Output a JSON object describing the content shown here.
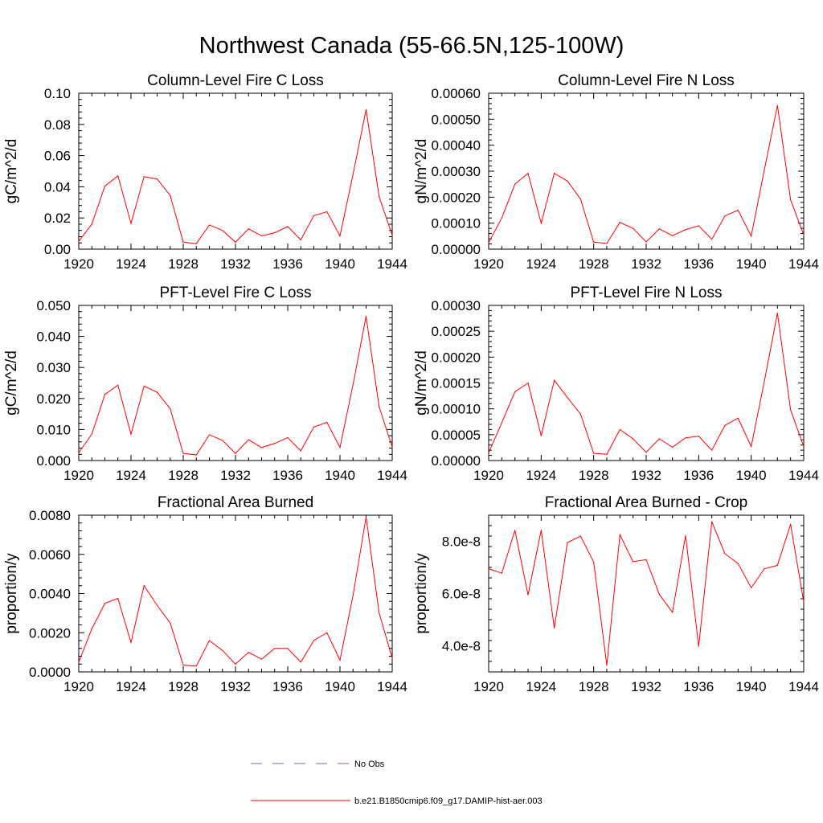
{
  "figure": {
    "title": "Northwest Canada (55-66.5N,125-100W)"
  },
  "legend": [
    {
      "label": "No Obs",
      "color": "#6a6ac9",
      "style": "dashed"
    },
    {
      "label": "b.e21.B1850cmip6.f09_g17.DAMIP-hist-aer.003",
      "color": "#ff0000",
      "style": "solid"
    }
  ],
  "chart_data": [
    {
      "type": "line",
      "title": "Column-Level Fire C Loss",
      "ylabel": "gC/m^2/d",
      "xlabel": "",
      "xlim": [
        1920,
        1944
      ],
      "ylim": [
        0,
        0.1
      ],
      "xticks": [
        "1920",
        "1924",
        "1928",
        "1932",
        "1936",
        "1940",
        "1944"
      ],
      "yticks": [
        "0.00",
        "0.02",
        "0.04",
        "0.06",
        "0.08",
        "0.10"
      ],
      "x": [
        1920,
        1921,
        1922,
        1923,
        1924,
        1925,
        1926,
        1927,
        1928,
        1929,
        1930,
        1931,
        1932,
        1933,
        1934,
        1935,
        1936,
        1937,
        1938,
        1939,
        1940,
        1941,
        1942,
        1943,
        1944
      ],
      "series": [
        {
          "name": "b.e21.B1850cmip6.f09_g17.DAMIP-hist-aer.003",
          "color": "#ff0000",
          "values": [
            0.005,
            0.016,
            0.0405,
            0.047,
            0.0165,
            0.0465,
            0.045,
            0.0345,
            0.0045,
            0.0035,
            0.0155,
            0.012,
            0.0045,
            0.013,
            0.0085,
            0.0105,
            0.0145,
            0.006,
            0.0215,
            0.024,
            0.0085,
            0.048,
            0.0895,
            0.0335,
            0.009
          ]
        }
      ]
    },
    {
      "type": "line",
      "title": "Column-Level Fire N Loss",
      "ylabel": "gN/m^2/d",
      "xlabel": "",
      "xlim": [
        1920,
        1944
      ],
      "ylim": [
        0,
        0.0006
      ],
      "xticks": [
        "1920",
        "1924",
        "1928",
        "1932",
        "1936",
        "1940",
        "1944"
      ],
      "yticks": [
        "0.00000",
        "0.00010",
        "0.00020",
        "0.00030",
        "0.00040",
        "0.00050",
        "0.00060"
      ],
      "x": [
        1920,
        1921,
        1922,
        1923,
        1924,
        1925,
        1926,
        1927,
        1928,
        1929,
        1930,
        1931,
        1932,
        1933,
        1934,
        1935,
        1936,
        1937,
        1938,
        1939,
        1940,
        1941,
        1942,
        1943,
        1944
      ],
      "series": [
        {
          "name": "b.e21.B1850cmip6.f09_g17.DAMIP-hist-aer.003",
          "color": "#ff0000",
          "values": [
            2.5e-05,
            0.00012,
            0.00025,
            0.000292,
            0.0001,
            0.000292,
            0.000262,
            0.000193,
            2.7e-05,
            2.2e-05,
            0.000103,
            8e-05,
            2.8e-05,
            7.8e-05,
            5.2e-05,
            7.5e-05,
            9e-05,
            3.8e-05,
            0.000128,
            0.00015,
            5e-05,
            0.000305,
            0.000553,
            0.00019,
            5.5e-05
          ]
        }
      ]
    },
    {
      "type": "line",
      "title": "PFT-Level Fire C Loss",
      "ylabel": "gC/m^2/d",
      "xlabel": "",
      "xlim": [
        1920,
        1944
      ],
      "ylim": [
        0,
        0.05
      ],
      "xticks": [
        "1920",
        "1924",
        "1928",
        "1932",
        "1936",
        "1940",
        "1944"
      ],
      "yticks": [
        "0.000",
        "0.010",
        "0.020",
        "0.030",
        "0.040",
        "0.050"
      ],
      "x": [
        1920,
        1921,
        1922,
        1923,
        1924,
        1925,
        1926,
        1927,
        1928,
        1929,
        1930,
        1931,
        1932,
        1933,
        1934,
        1935,
        1936,
        1937,
        1938,
        1939,
        1940,
        1941,
        1942,
        1943,
        1944
      ],
      "series": [
        {
          "name": "b.e21.B1850cmip6.f09_g17.DAMIP-hist-aer.003",
          "color": "#ff0000",
          "values": [
            0.0025,
            0.0085,
            0.0213,
            0.0243,
            0.0085,
            0.024,
            0.022,
            0.0167,
            0.0023,
            0.0018,
            0.0083,
            0.0065,
            0.0023,
            0.0067,
            0.0042,
            0.0055,
            0.0074,
            0.0031,
            0.0108,
            0.0123,
            0.0042,
            0.0245,
            0.0465,
            0.0173,
            0.0043
          ]
        }
      ]
    },
    {
      "type": "line",
      "title": "PFT-Level Fire N Loss",
      "ylabel": "gN/m^2/d",
      "xlabel": "",
      "xlim": [
        1920,
        1944
      ],
      "ylim": [
        0,
        0.0003
      ],
      "xticks": [
        "1920",
        "1924",
        "1928",
        "1932",
        "1936",
        "1940",
        "1944"
      ],
      "yticks": [
        "0.00000",
        "0.00005",
        "0.00010",
        "0.00015",
        "0.00020",
        "0.00025",
        "0.00030"
      ],
      "x": [
        1920,
        1921,
        1922,
        1923,
        1924,
        1925,
        1926,
        1927,
        1928,
        1929,
        1930,
        1931,
        1932,
        1933,
        1934,
        1935,
        1936,
        1937,
        1938,
        1939,
        1940,
        1941,
        1942,
        1943,
        1944
      ],
      "series": [
        {
          "name": "b.e21.B1850cmip6.f09_g17.DAMIP-hist-aer.003",
          "color": "#ff0000",
          "values": [
            1.5e-05,
            7.3e-05,
            0.000133,
            0.00015,
            4.8e-05,
            0.000155,
            0.000122,
            9e-05,
            1.4e-05,
            1.2e-05,
            6e-05,
            4.2e-05,
            1.6e-05,
            4.2e-05,
            2.6e-05,
            4.4e-05,
            4.7e-05,
            2e-05,
            6.8e-05,
            8.2e-05,
            2.7e-05,
            0.000153,
            0.000285,
            9.8e-05,
            2.7e-05
          ]
        }
      ]
    },
    {
      "type": "line",
      "title": "Fractional Area Burned",
      "ylabel": "proportion/y",
      "xlabel": "",
      "xlim": [
        1920,
        1944
      ],
      "ylim": [
        0,
        0.008
      ],
      "xticks": [
        "1920",
        "1924",
        "1928",
        "1932",
        "1936",
        "1940",
        "1944"
      ],
      "yticks": [
        "0.0000",
        "0.0020",
        "0.0040",
        "0.0060",
        "0.0080"
      ],
      "x": [
        1920,
        1921,
        1922,
        1923,
        1924,
        1925,
        1926,
        1927,
        1928,
        1929,
        1930,
        1931,
        1932,
        1933,
        1934,
        1935,
        1936,
        1937,
        1938,
        1939,
        1940,
        1941,
        1942,
        1943,
        1944
      ],
      "series": [
        {
          "name": "b.e21.B1850cmip6.f09_g17.DAMIP-hist-aer.003",
          "color": "#ff0000",
          "values": [
            0.0005,
            0.0022,
            0.0035,
            0.00375,
            0.0015,
            0.0044,
            0.0034,
            0.0025,
            0.00035,
            0.0003,
            0.0016,
            0.0011,
            0.0004,
            0.001,
            0.00065,
            0.0012,
            0.0012,
            0.0005,
            0.0016,
            0.002,
            0.0006,
            0.0039,
            0.0079,
            0.003,
            0.0007
          ]
        }
      ]
    },
    {
      "type": "line",
      "title": "Fractional Area Burned - Crop",
      "ylabel": "proportion/y",
      "xlabel": "",
      "xlim": [
        1920,
        1944
      ],
      "ylim": [
        3e-08,
        9e-08
      ],
      "xticks": [
        "1920",
        "1924",
        "1928",
        "1932",
        "1936",
        "1940",
        "1944"
      ],
      "yticks": [
        "4.0e-8",
        "6.0e-8",
        "8.0e-8"
      ],
      "x": [
        1920,
        1921,
        1922,
        1923,
        1924,
        1925,
        1926,
        1927,
        1928,
        1929,
        1930,
        1931,
        1932,
        1933,
        1934,
        1935,
        1936,
        1937,
        1938,
        1939,
        1940,
        1941,
        1942,
        1943,
        1944
      ],
      "series": [
        {
          "name": "b.e21.B1850cmip6.f09_g17.DAMIP-hist-aer.003",
          "color": "#ff0000",
          "values": [
            6.95e-08,
            6.78e-08,
            8.42e-08,
            5.95e-08,
            8.42e-08,
            4.68e-08,
            7.95e-08,
            8.2e-08,
            7.2e-08,
            3.25e-08,
            8.25e-08,
            7.22e-08,
            7.3e-08,
            5.97e-08,
            5.28e-08,
            8.22e-08,
            3.98e-08,
            8.75e-08,
            7.52e-08,
            7.15e-08,
            6.22e-08,
            6.95e-08,
            7.08e-08,
            8.65e-08,
            5.68e-08
          ]
        }
      ]
    }
  ]
}
